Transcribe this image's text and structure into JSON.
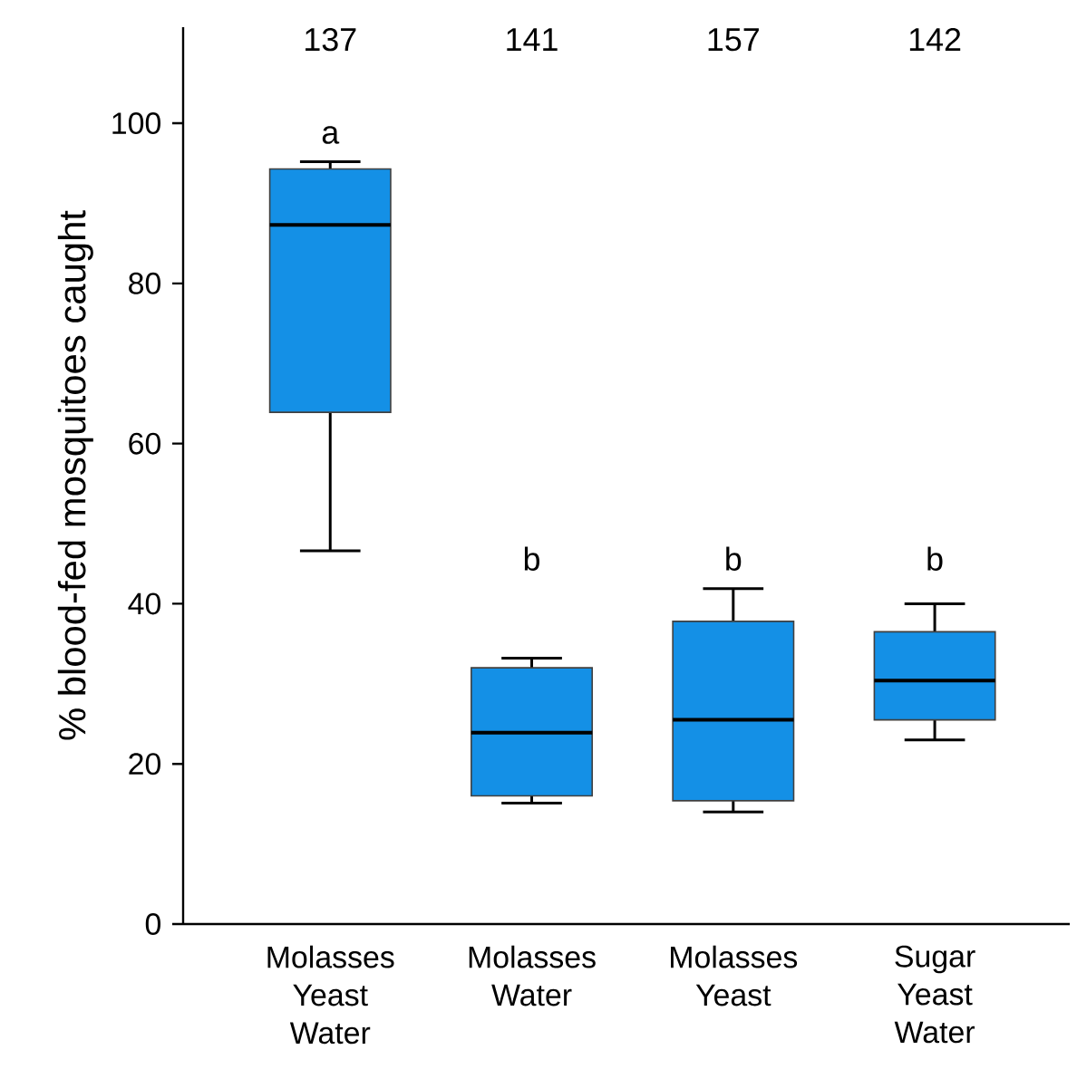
{
  "chart_data": {
    "type": "box",
    "ylabel": "% blood-fed mosquitoes caught",
    "categories": [
      "Molasses Yeast Water",
      "Molasses Water",
      "Molasses Yeast",
      "Sugar Yeast Water"
    ],
    "color": "#1490e6",
    "boxes": [
      {
        "low": 46.6,
        "q1": 63.9,
        "median": 87.3,
        "q3": 94.3,
        "high": 95.2
      },
      {
        "low": 15.1,
        "q1": 16.0,
        "median": 23.9,
        "q3": 32.0,
        "high": 33.2
      },
      {
        "low": 14.0,
        "q1": 15.4,
        "median": 25.5,
        "q3": 37.8,
        "high": 41.9
      },
      {
        "low": 23.0,
        "q1": 25.5,
        "median": 30.4,
        "q3": 36.5,
        "high": 40.0
      }
    ],
    "ylim": [
      0,
      112
    ],
    "yticks": [
      0,
      20,
      40,
      60,
      80,
      100
    ],
    "annotations": [
      "137",
      "141",
      "157",
      "142",
      "a",
      "b",
      "b",
      "b"
    ]
  }
}
